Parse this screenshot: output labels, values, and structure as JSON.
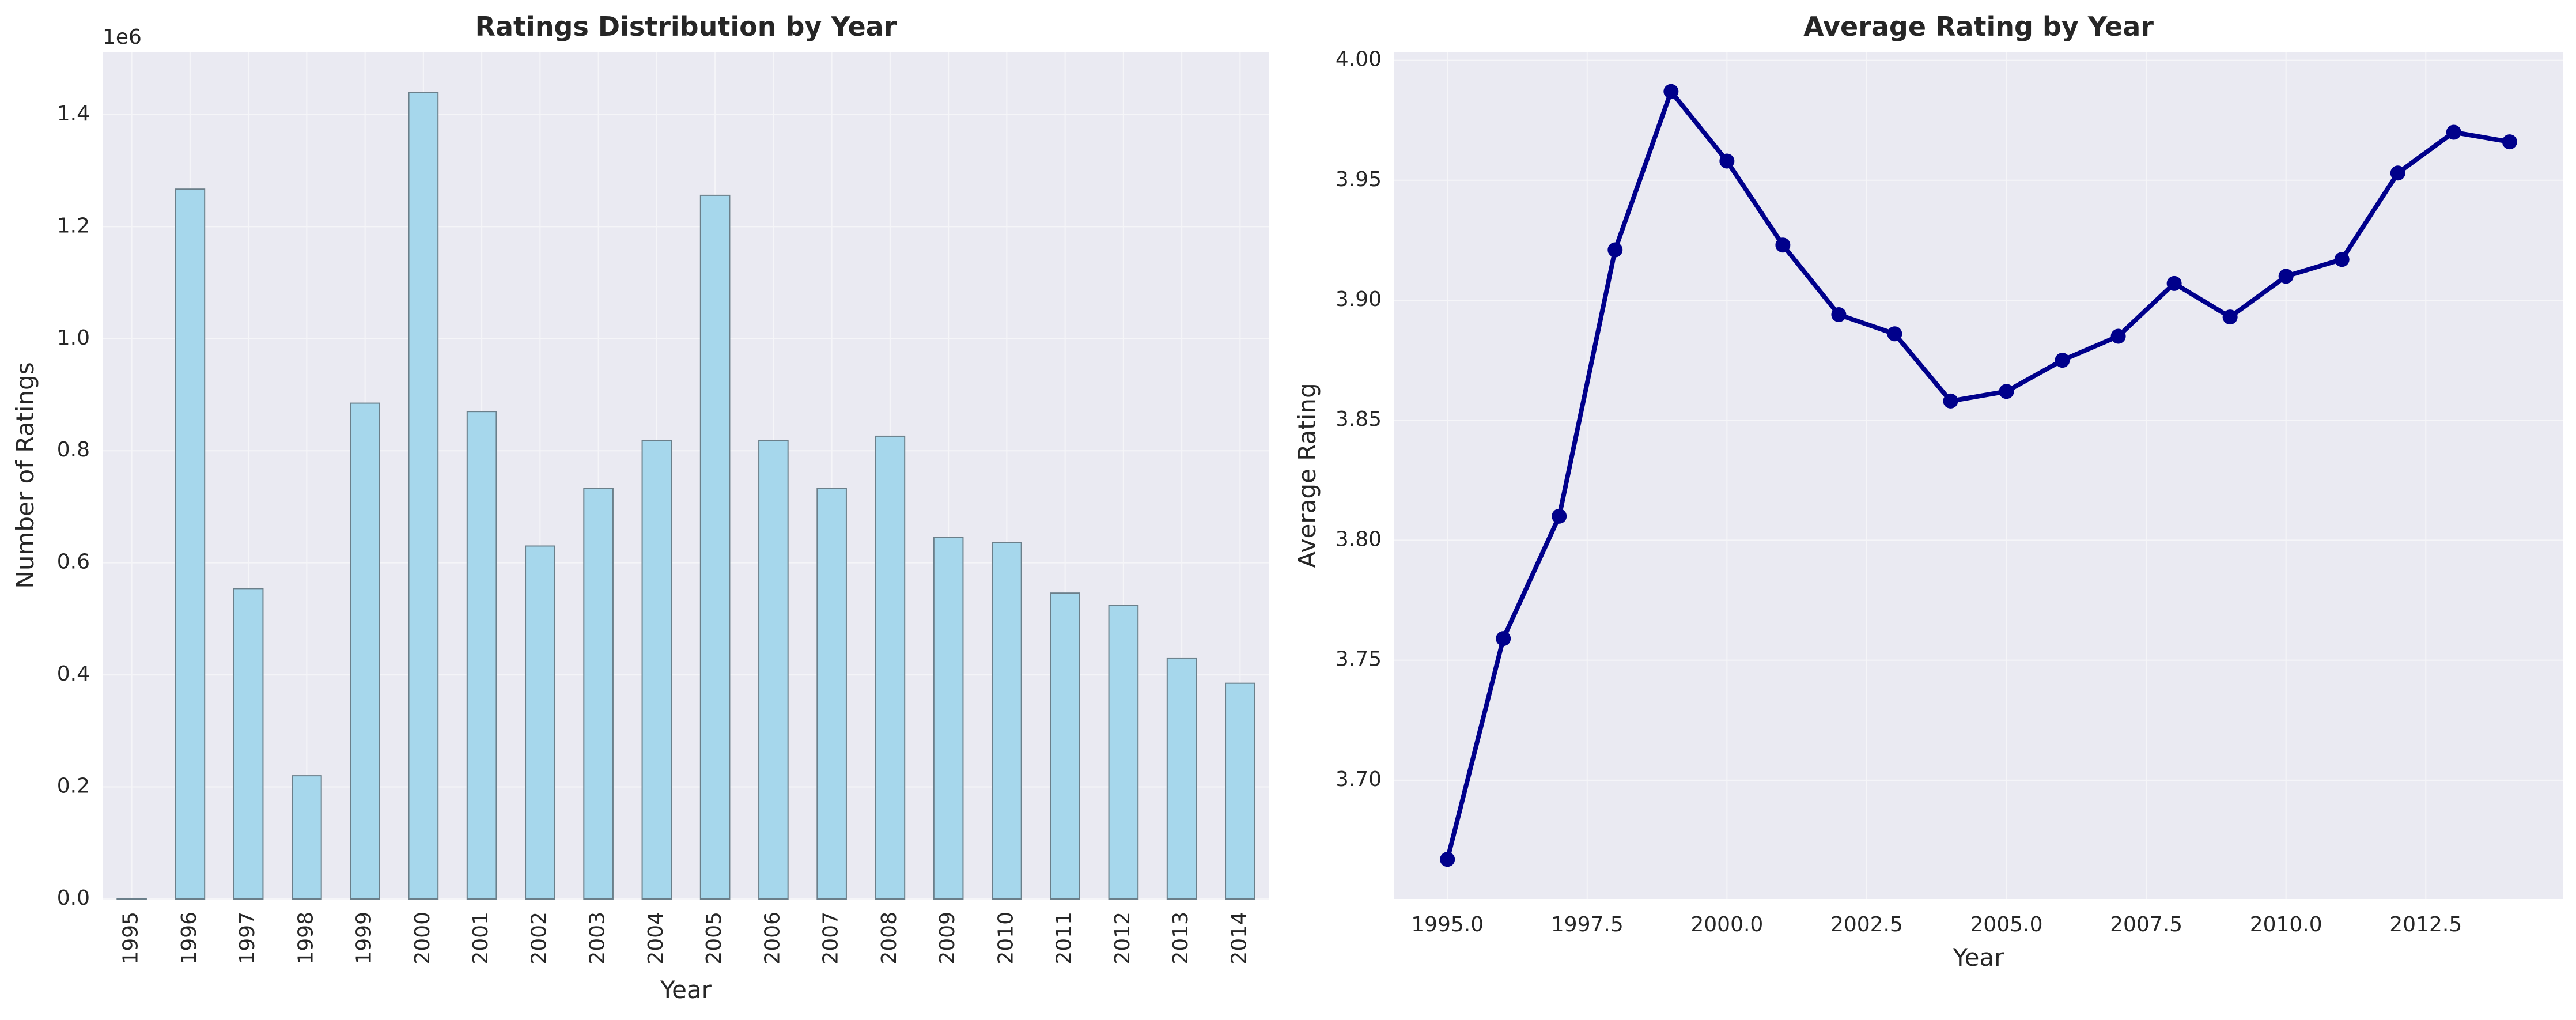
{
  "chart_data": [
    {
      "type": "bar",
      "title": "Ratings Distribution by Year",
      "xlabel": "Year",
      "ylabel": "Number of Ratings",
      "y_offset_label": "1e6",
      "categories": [
        "1995",
        "1996",
        "1997",
        "1998",
        "1999",
        "2000",
        "2001",
        "2002",
        "2003",
        "2004",
        "2005",
        "2006",
        "2007",
        "2008",
        "2009",
        "2010",
        "2011",
        "2012",
        "2013",
        "2014"
      ],
      "values": [
        3,
        1267000,
        554000,
        220000,
        885000,
        1440000,
        870000,
        630000,
        733000,
        818000,
        1256000,
        818000,
        733000,
        826000,
        645000,
        636000,
        546000,
        524000,
        430000,
        385000
      ],
      "ylim": [
        0,
        1512000
      ],
      "yticks": [
        0,
        200000,
        400000,
        600000,
        800000,
        1000000,
        1200000,
        1400000
      ],
      "ytick_labels": [
        "0.0",
        "0.2",
        "0.4",
        "0.6",
        "0.8",
        "1.0",
        "1.2",
        "1.4"
      ],
      "grid": true,
      "colors": {
        "bar_fill": "#a6d7ec",
        "bar_edge": "#6b7f8a",
        "plot_bg": "#eaeaf2",
        "grid": "#f5f5f8"
      }
    },
    {
      "type": "line",
      "title": "Average Rating by Year",
      "xlabel": "Year",
      "ylabel": "Average Rating",
      "x": [
        1995,
        1996,
        1997,
        1998,
        1999,
        2000,
        2001,
        2002,
        2003,
        2004,
        2005,
        2006,
        2007,
        2008,
        2009,
        2010,
        2011,
        2012,
        2013,
        2014
      ],
      "y": [
        3.667,
        3.759,
        3.81,
        3.921,
        3.987,
        3.958,
        3.923,
        3.894,
        3.886,
        3.858,
        3.862,
        3.875,
        3.885,
        3.907,
        3.893,
        3.91,
        3.917,
        3.953,
        3.97,
        3.966
      ],
      "xlim": [
        1994.05,
        2014.95
      ],
      "ylim": [
        3.6505,
        4.0035
      ],
      "xticks": [
        1995,
        1997.5,
        2000,
        2002.5,
        2005,
        2007.5,
        2010,
        2012.5
      ],
      "xtick_labels": [
        "1995.0",
        "1997.5",
        "2000.0",
        "2002.5",
        "2005.0",
        "2007.5",
        "2010.0",
        "2012.5"
      ],
      "yticks": [
        3.7,
        3.75,
        3.8,
        3.85,
        3.9,
        3.95,
        4.0
      ],
      "ytick_labels": [
        "3.70",
        "3.75",
        "3.80",
        "3.85",
        "3.90",
        "3.95",
        "4.00"
      ],
      "grid": true,
      "colors": {
        "line": "#00008b",
        "marker": "#00008b",
        "plot_bg": "#eaeaf2",
        "grid": "#f5f5f8"
      }
    }
  ]
}
